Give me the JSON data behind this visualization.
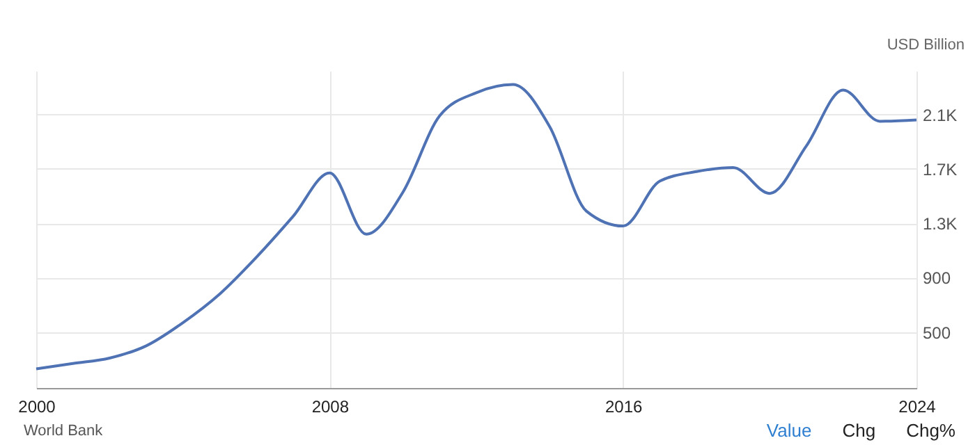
{
  "chart_data": {
    "type": "line",
    "ylabel": "USD Billion",
    "x": [
      2000,
      2001,
      2002,
      2003,
      2004,
      2005,
      2006,
      2007,
      2008,
      2009,
      2010,
      2011,
      2012,
      2013,
      2014,
      2015,
      2016,
      2017,
      2018,
      2019,
      2020,
      2021,
      2022,
      2023,
      2024
    ],
    "series": [
      {
        "color": "#4e72b3",
        "values": [
          230,
          270,
          310,
          400,
          570,
          780,
          1050,
          1350,
          1670,
          1220,
          1530,
          2090,
          2260,
          2320,
          2010,
          1390,
          1280,
          1610,
          1680,
          1710,
          1520,
          1870,
          2280,
          2050,
          2060
        ]
      }
    ],
    "xlim": [
      2000,
      2024
    ],
    "xticks": [
      2000,
      2008,
      2016,
      2024
    ],
    "ylim": [
      90,
      2420
    ],
    "yticks": [
      500,
      900,
      {
        "value": 1300,
        "label": "1.3K"
      },
      {
        "value": 1700,
        "label": "1.7K"
      },
      {
        "value": 2100,
        "label": "2.1K"
      }
    ],
    "grid": true,
    "marker": "none",
    "line_style": "solid",
    "annotations": [
      "World Bank",
      "Value",
      "Chg",
      "Chg%"
    ]
  }
}
